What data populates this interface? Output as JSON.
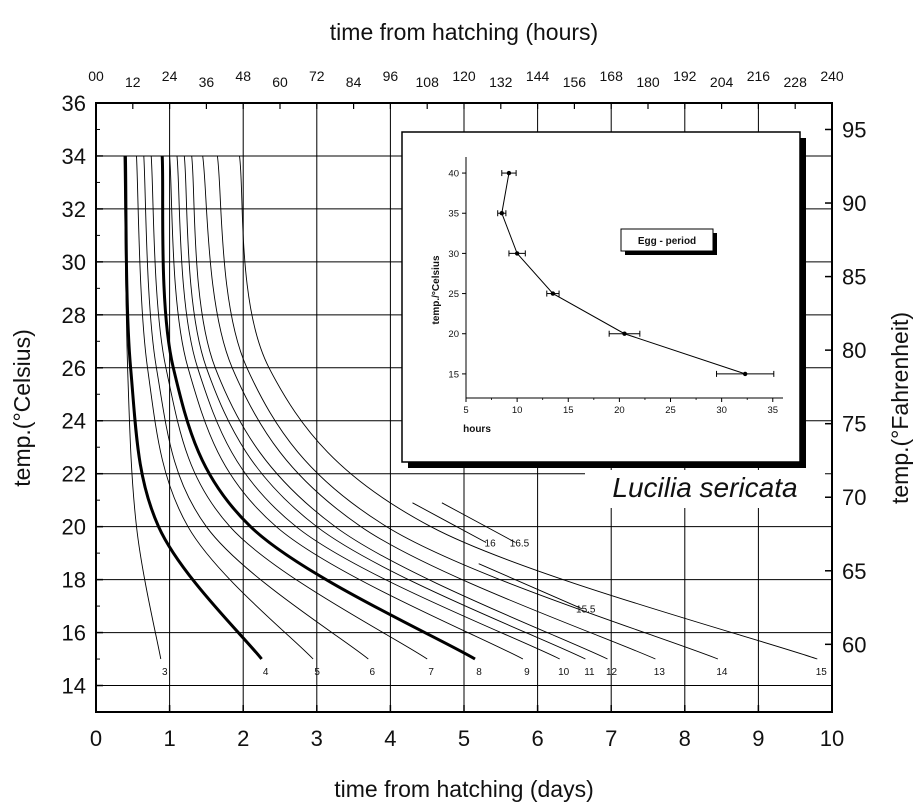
{
  "chart_data": [
    {
      "type": "line",
      "title": "Lucilia sericata",
      "xlabel": "time from hatching (days)",
      "x2label": "time from hatching (hours)",
      "ylabel": "temp.(°Celsius)",
      "y2label": "temp.(°Fahrenheit)",
      "xlim": [
        0,
        10
      ],
      "ylim": [
        13,
        36
      ],
      "x2lim": [
        0,
        240
      ],
      "y2lim": [
        55.4,
        96.8
      ],
      "xticks": [
        "0",
        "1",
        "2",
        "3",
        "4",
        "5",
        "6",
        "7",
        "8",
        "9",
        "10"
      ],
      "yticks": [
        "14",
        "16",
        "18",
        "20",
        "22",
        "24",
        "26",
        "28",
        "30",
        "32",
        "34",
        "36"
      ],
      "x2ticks": [
        "00",
        "12",
        "24",
        "36",
        "48",
        "60",
        "72",
        "84",
        "96",
        "108",
        "120",
        "132",
        "144",
        "156",
        "168",
        "180",
        "192",
        "204",
        "216",
        "228",
        "240"
      ],
      "y2ticks": [
        "60",
        "65",
        "70",
        "75",
        "80",
        "85",
        "90",
        "95"
      ],
      "grid": true,
      "series": [
        {
          "name": "3",
          "x": [
            0.38,
            0.43,
            0.55,
            0.88
          ],
          "y": [
            34,
            26,
            20,
            15
          ]
        },
        {
          "name": "4",
          "x": [
            0.4,
            0.47,
            0.85,
            2.25
          ],
          "y": [
            34,
            26,
            20,
            15
          ]
        },
        {
          "name": "5",
          "x": [
            0.55,
            0.7,
            1.25,
            2.95
          ],
          "y": [
            34,
            26,
            20,
            15
          ]
        },
        {
          "name": "6",
          "x": [
            0.65,
            0.82,
            1.5,
            3.7
          ],
          "y": [
            34,
            26,
            20,
            15
          ]
        },
        {
          "name": "7",
          "x": [
            0.75,
            0.95,
            1.82,
            4.5
          ],
          "y": [
            34,
            26,
            20,
            15
          ]
        },
        {
          "name": "8",
          "x": [
            0.9,
            1.05,
            2.1,
            5.15
          ],
          "y": [
            34,
            26,
            20,
            15
          ]
        },
        {
          "name": "9",
          "x": [
            1.0,
            1.25,
            2.45,
            5.8
          ],
          "y": [
            34,
            26,
            20,
            15
          ]
        },
        {
          "name": "10",
          "x": [
            1.1,
            1.38,
            2.72,
            6.3
          ],
          "y": [
            34,
            26,
            20,
            15
          ]
        },
        {
          "name": "11",
          "x": [
            1.2,
            1.5,
            3.0,
            6.65
          ],
          "y": [
            34,
            26,
            20,
            15
          ]
        },
        {
          "name": "12",
          "x": [
            1.3,
            1.62,
            3.25,
            6.95
          ],
          "y": [
            34,
            26,
            20,
            15
          ]
        },
        {
          "name": "13",
          "x": [
            1.45,
            1.85,
            3.6,
            7.6
          ],
          "y": [
            34,
            26,
            20,
            15
          ]
        },
        {
          "name": "14",
          "x": [
            1.65,
            2.05,
            3.95,
            8.45
          ],
          "y": [
            34,
            26,
            20,
            15
          ]
        },
        {
          "name": "15",
          "x": [
            1.95,
            2.35,
            4.55,
            9.8
          ],
          "y": [
            34,
            26,
            20,
            15
          ]
        },
        {
          "name": "15.5",
          "x": [
            5.2,
            6.6
          ],
          "y": [
            18.6,
            16.9
          ]
        },
        {
          "name": "16",
          "x": [
            4.3,
            5.3
          ],
          "y": [
            20.9,
            19.4
          ]
        },
        {
          "name": "16.5",
          "x": [
            4.7,
            5.7
          ],
          "y": [
            20.9,
            19.4
          ]
        }
      ],
      "bold_series": [
        "4",
        "8"
      ]
    },
    {
      "type": "scatter",
      "title": "Egg - period",
      "xlabel": "hours",
      "ylabel": "temp./°Celsius",
      "xlim": [
        5,
        36
      ],
      "ylim": [
        12,
        42
      ],
      "xticks": [
        "5",
        "10",
        "15",
        "20",
        "25",
        "30",
        "35"
      ],
      "yticks": [
        "15",
        "20",
        "25",
        "30",
        "35",
        "40"
      ],
      "grid": false,
      "series": [
        {
          "x": [
            32.3,
            20.5,
            13.5,
            10.0,
            8.5,
            9.2
          ],
          "y": [
            15,
            20,
            25,
            30,
            35,
            40
          ],
          "xerr": [
            2.8,
            1.5,
            0.6,
            0.8,
            0.4,
            0.7
          ]
        }
      ]
    }
  ]
}
